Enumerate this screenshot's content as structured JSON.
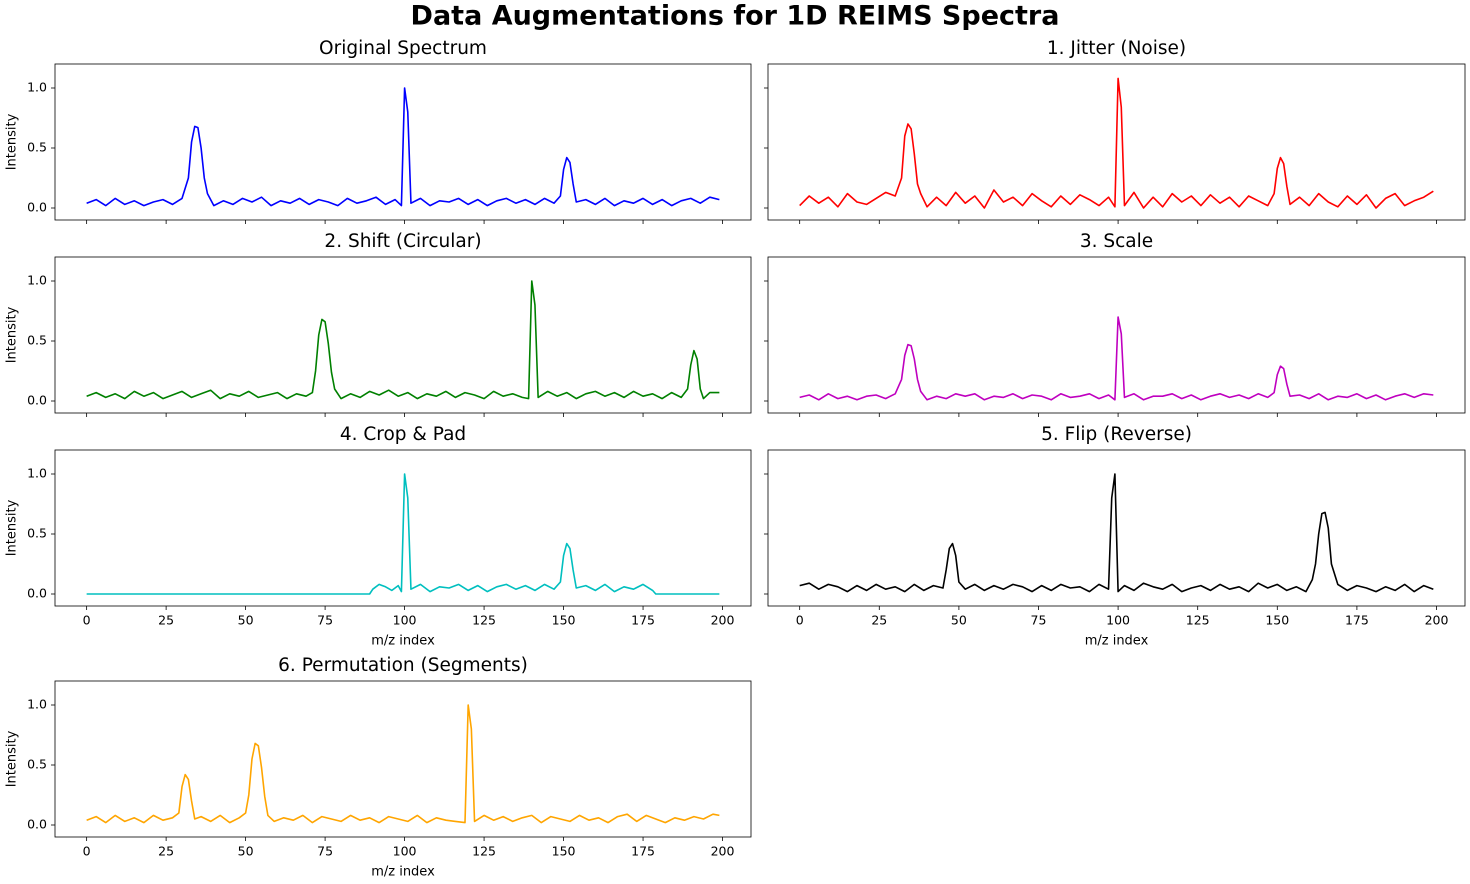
{
  "title": "Data Augmentations for 1D REIMS Spectra",
  "chart_data": [
    {
      "type": "line",
      "title": "Original Spectrum",
      "ylabel": "Intensity",
      "color": "#0000ff",
      "x": [
        0,
        3,
        6,
        9,
        12,
        15,
        18,
        21,
        24,
        27,
        30,
        32,
        33,
        34,
        35,
        36,
        37,
        38,
        40,
        43,
        46,
        49,
        52,
        55,
        58,
        61,
        64,
        67,
        70,
        73,
        76,
        79,
        82,
        85,
        88,
        91,
        94,
        97,
        99,
        100,
        101,
        102,
        105,
        108,
        111,
        114,
        117,
        120,
        123,
        126,
        129,
        132,
        135,
        138,
        141,
        144,
        147,
        149,
        150,
        151,
        152,
        153,
        154,
        157,
        160,
        163,
        166,
        169,
        172,
        175,
        178,
        181,
        184,
        187,
        190,
        193,
        196,
        199
      ],
      "values": [
        0.04,
        0.07,
        0.02,
        0.08,
        0.03,
        0.06,
        0.02,
        0.05,
        0.07,
        0.03,
        0.08,
        0.25,
        0.55,
        0.68,
        0.67,
        0.5,
        0.25,
        0.12,
        0.02,
        0.06,
        0.03,
        0.08,
        0.05,
        0.09,
        0.02,
        0.06,
        0.04,
        0.08,
        0.03,
        0.07,
        0.05,
        0.02,
        0.08,
        0.04,
        0.06,
        0.09,
        0.03,
        0.07,
        0.02,
        1.0,
        0.8,
        0.04,
        0.08,
        0.02,
        0.06,
        0.05,
        0.08,
        0.03,
        0.07,
        0.02,
        0.06,
        0.08,
        0.04,
        0.07,
        0.03,
        0.08,
        0.04,
        0.1,
        0.32,
        0.42,
        0.38,
        0.2,
        0.05,
        0.07,
        0.03,
        0.08,
        0.02,
        0.06,
        0.04,
        0.08,
        0.03,
        0.07,
        0.02,
        0.06,
        0.08,
        0.04,
        0.09,
        0.07
      ],
      "xlim": [
        -9.95,
        208.95
      ],
      "ylim": [
        -0.1,
        1.2
      ],
      "xticks": [
        0,
        25,
        50,
        75,
        100,
        125,
        150,
        175,
        200
      ],
      "yticks": [
        {
          "value": 0,
          "label": "0.0"
        },
        {
          "value": 0.5,
          "label": "0.5"
        },
        {
          "value": 1,
          "label": "1.0"
        }
      ]
    },
    {
      "type": "line",
      "title": "1. Jitter (Noise)",
      "color": "#ff0000",
      "x": [
        0,
        3,
        6,
        9,
        12,
        15,
        18,
        21,
        24,
        27,
        30,
        32,
        33,
        34,
        35,
        36,
        37,
        38,
        40,
        43,
        46,
        49,
        52,
        55,
        58,
        61,
        64,
        67,
        70,
        73,
        76,
        79,
        82,
        85,
        88,
        91,
        94,
        97,
        99,
        100,
        101,
        102,
        105,
        108,
        111,
        114,
        117,
        120,
        123,
        126,
        129,
        132,
        135,
        138,
        141,
        144,
        147,
        149,
        150,
        151,
        152,
        153,
        154,
        157,
        160,
        163,
        166,
        169,
        172,
        175,
        178,
        181,
        184,
        187,
        190,
        193,
        196,
        199
      ],
      "values": [
        0.02,
        0.1,
        0.04,
        0.09,
        0.01,
        0.12,
        0.05,
        0.03,
        0.08,
        0.13,
        0.1,
        0.25,
        0.6,
        0.7,
        0.66,
        0.45,
        0.2,
        0.12,
        0.01,
        0.09,
        0.02,
        0.13,
        0.04,
        0.1,
        0.0,
        0.15,
        0.05,
        0.09,
        0.02,
        0.12,
        0.06,
        0.01,
        0.1,
        0.03,
        0.11,
        0.07,
        0.02,
        0.09,
        0.01,
        1.08,
        0.84,
        0.02,
        0.13,
        0.0,
        0.09,
        0.01,
        0.12,
        0.05,
        0.1,
        0.02,
        0.11,
        0.04,
        0.09,
        0.01,
        0.1,
        0.06,
        0.02,
        0.12,
        0.33,
        0.42,
        0.37,
        0.18,
        0.03,
        0.09,
        0.02,
        0.12,
        0.05,
        0.01,
        0.1,
        0.03,
        0.11,
        0.0,
        0.08,
        0.12,
        0.02,
        0.06,
        0.09,
        0.14
      ],
      "xlim": [
        -9.95,
        208.95
      ],
      "ylim": [
        -0.1,
        1.2
      ],
      "xticks": [
        0,
        25,
        50,
        75,
        100,
        125,
        150,
        175,
        200
      ],
      "yticks": [
        {
          "value": 0,
          "label": "0.0"
        },
        {
          "value": 0.5,
          "label": "0.5"
        },
        {
          "value": 1,
          "label": "1.0"
        }
      ]
    },
    {
      "type": "line",
      "title": "2. Shift (Circular)",
      "ylabel": "Intensity",
      "color": "#008000",
      "x": [
        0,
        3,
        6,
        9,
        12,
        15,
        18,
        21,
        24,
        27,
        30,
        33,
        36,
        39,
        42,
        45,
        48,
        51,
        54,
        57,
        60,
        63,
        66,
        69,
        71,
        72,
        73,
        74,
        75,
        76,
        77,
        78,
        80,
        83,
        86,
        89,
        92,
        95,
        98,
        101,
        104,
        107,
        110,
        113,
        116,
        119,
        122,
        125,
        128,
        131,
        134,
        137,
        139,
        140,
        141,
        142,
        145,
        148,
        151,
        154,
        157,
        160,
        163,
        166,
        169,
        172,
        175,
        178,
        181,
        184,
        187,
        189,
        190,
        191,
        192,
        193,
        194,
        196,
        199
      ],
      "values": [
        0.04,
        0.07,
        0.03,
        0.06,
        0.02,
        0.08,
        0.04,
        0.07,
        0.02,
        0.05,
        0.08,
        0.03,
        0.06,
        0.09,
        0.02,
        0.06,
        0.04,
        0.08,
        0.03,
        0.05,
        0.07,
        0.02,
        0.06,
        0.04,
        0.07,
        0.25,
        0.55,
        0.68,
        0.66,
        0.48,
        0.24,
        0.1,
        0.02,
        0.06,
        0.03,
        0.08,
        0.05,
        0.09,
        0.04,
        0.07,
        0.02,
        0.06,
        0.04,
        0.08,
        0.03,
        0.07,
        0.05,
        0.02,
        0.08,
        0.04,
        0.06,
        0.03,
        0.02,
        1.0,
        0.8,
        0.03,
        0.08,
        0.04,
        0.07,
        0.02,
        0.06,
        0.08,
        0.04,
        0.07,
        0.03,
        0.08,
        0.04,
        0.06,
        0.02,
        0.07,
        0.03,
        0.1,
        0.3,
        0.42,
        0.35,
        0.1,
        0.02,
        0.07,
        0.07
      ],
      "xlim": [
        -9.95,
        208.95
      ],
      "ylim": [
        -0.1,
        1.2
      ],
      "xticks": [
        0,
        25,
        50,
        75,
        100,
        125,
        150,
        175,
        200
      ],
      "yticks": [
        {
          "value": 0,
          "label": "0.0"
        },
        {
          "value": 0.5,
          "label": "0.5"
        },
        {
          "value": 1,
          "label": "1.0"
        }
      ]
    },
    {
      "type": "line",
      "title": "3. Scale",
      "color": "#bf00bf",
      "x": [
        0,
        3,
        6,
        9,
        12,
        15,
        18,
        21,
        24,
        27,
        30,
        32,
        33,
        34,
        35,
        36,
        37,
        38,
        40,
        43,
        46,
        49,
        52,
        55,
        58,
        61,
        64,
        67,
        70,
        73,
        76,
        79,
        82,
        85,
        88,
        91,
        94,
        97,
        99,
        100,
        101,
        102,
        105,
        108,
        111,
        114,
        117,
        120,
        123,
        126,
        129,
        132,
        135,
        138,
        141,
        144,
        147,
        149,
        150,
        151,
        152,
        153,
        154,
        157,
        160,
        163,
        166,
        169,
        172,
        175,
        178,
        181,
        184,
        187,
        190,
        193,
        196,
        199
      ],
      "values": [
        0.03,
        0.05,
        0.01,
        0.06,
        0.02,
        0.04,
        0.01,
        0.04,
        0.05,
        0.02,
        0.06,
        0.18,
        0.38,
        0.47,
        0.46,
        0.35,
        0.18,
        0.08,
        0.01,
        0.04,
        0.02,
        0.06,
        0.04,
        0.06,
        0.01,
        0.04,
        0.03,
        0.06,
        0.02,
        0.05,
        0.04,
        0.01,
        0.06,
        0.03,
        0.04,
        0.06,
        0.02,
        0.05,
        0.01,
        0.7,
        0.56,
        0.03,
        0.06,
        0.01,
        0.04,
        0.04,
        0.06,
        0.02,
        0.05,
        0.01,
        0.04,
        0.06,
        0.03,
        0.05,
        0.02,
        0.06,
        0.03,
        0.07,
        0.22,
        0.29,
        0.27,
        0.14,
        0.04,
        0.05,
        0.02,
        0.06,
        0.01,
        0.04,
        0.03,
        0.06,
        0.02,
        0.05,
        0.01,
        0.04,
        0.06,
        0.03,
        0.06,
        0.05
      ],
      "xlim": [
        -9.95,
        208.95
      ],
      "ylim": [
        -0.1,
        1.2
      ],
      "xticks": [
        0,
        25,
        50,
        75,
        100,
        125,
        150,
        175,
        200
      ],
      "yticks": [
        {
          "value": 0,
          "label": "0.0"
        },
        {
          "value": 0.5,
          "label": "0.5"
        },
        {
          "value": 1,
          "label": "1.0"
        }
      ]
    },
    {
      "type": "line",
      "title": "4. Crop & Pad",
      "ylabel": "Intensity",
      "xlabel": "m/z index",
      "color": "#00bfbf",
      "x": [
        0,
        89,
        90,
        92,
        94,
        96,
        98,
        99,
        100,
        101,
        102,
        105,
        108,
        111,
        114,
        117,
        120,
        123,
        126,
        129,
        132,
        135,
        138,
        141,
        144,
        147,
        149,
        150,
        151,
        152,
        153,
        154,
        157,
        160,
        163,
        166,
        169,
        172,
        175,
        178,
        179,
        199
      ],
      "values": [
        0,
        0,
        0.04,
        0.08,
        0.06,
        0.03,
        0.07,
        0.02,
        1.0,
        0.8,
        0.04,
        0.08,
        0.02,
        0.06,
        0.05,
        0.08,
        0.03,
        0.07,
        0.02,
        0.06,
        0.08,
        0.04,
        0.07,
        0.03,
        0.08,
        0.04,
        0.1,
        0.32,
        0.42,
        0.38,
        0.2,
        0.05,
        0.07,
        0.03,
        0.08,
        0.02,
        0.06,
        0.04,
        0.08,
        0.03,
        0,
        0
      ],
      "xlim": [
        -9.95,
        208.95
      ],
      "ylim": [
        -0.1,
        1.2
      ],
      "xticks": [
        0,
        25,
        50,
        75,
        100,
        125,
        150,
        175,
        200
      ],
      "yticks": [
        {
          "value": 0,
          "label": "0.0"
        },
        {
          "value": 0.5,
          "label": "0.5"
        },
        {
          "value": 1,
          "label": "1.0"
        }
      ]
    },
    {
      "type": "line",
      "title": "5. Flip (Reverse)",
      "xlabel": "m/z index",
      "color": "#000000",
      "x": [
        0,
        3,
        6,
        9,
        12,
        15,
        18,
        21,
        24,
        27,
        30,
        33,
        36,
        39,
        42,
        45,
        46,
        47,
        48,
        49,
        50,
        52,
        55,
        58,
        61,
        64,
        67,
        70,
        73,
        76,
        79,
        82,
        85,
        88,
        91,
        94,
        97,
        98,
        99,
        100,
        102,
        105,
        108,
        111,
        114,
        117,
        120,
        123,
        126,
        129,
        132,
        135,
        138,
        141,
        144,
        147,
        150,
        153,
        156,
        159,
        161,
        162,
        163,
        164,
        165,
        166,
        167,
        169,
        172,
        175,
        178,
        181,
        184,
        187,
        190,
        193,
        196,
        199
      ],
      "values": [
        0.07,
        0.09,
        0.04,
        0.08,
        0.06,
        0.02,
        0.07,
        0.03,
        0.08,
        0.04,
        0.06,
        0.02,
        0.08,
        0.03,
        0.07,
        0.05,
        0.2,
        0.38,
        0.42,
        0.32,
        0.1,
        0.04,
        0.08,
        0.03,
        0.07,
        0.04,
        0.08,
        0.06,
        0.02,
        0.07,
        0.03,
        0.08,
        0.05,
        0.06,
        0.02,
        0.08,
        0.04,
        0.8,
        1.0,
        0.02,
        0.07,
        0.03,
        0.09,
        0.06,
        0.04,
        0.08,
        0.02,
        0.05,
        0.07,
        0.03,
        0.08,
        0.04,
        0.06,
        0.02,
        0.09,
        0.05,
        0.08,
        0.03,
        0.06,
        0.02,
        0.12,
        0.25,
        0.5,
        0.67,
        0.68,
        0.55,
        0.25,
        0.08,
        0.03,
        0.07,
        0.05,
        0.02,
        0.06,
        0.03,
        0.08,
        0.02,
        0.07,
        0.04
      ],
      "xlim": [
        -9.95,
        208.95
      ],
      "ylim": [
        -0.1,
        1.2
      ],
      "xticks": [
        0,
        25,
        50,
        75,
        100,
        125,
        150,
        175,
        200
      ],
      "yticks": [
        {
          "value": 0,
          "label": "0.0"
        },
        {
          "value": 0.5,
          "label": "0.5"
        },
        {
          "value": 1,
          "label": "1.0"
        }
      ]
    },
    {
      "type": "line",
      "title": "6. Permutation (Segments)",
      "ylabel": "Intensity",
      "xlabel": "m/z index",
      "color": "#ffa500",
      "x": [
        0,
        3,
        6,
        9,
        12,
        15,
        18,
        21,
        24,
        27,
        29,
        30,
        31,
        32,
        33,
        34,
        36,
        39,
        42,
        45,
        48,
        50,
        51,
        52,
        53,
        54,
        55,
        56,
        57,
        59,
        62,
        65,
        68,
        71,
        74,
        77,
        80,
        83,
        86,
        89,
        92,
        95,
        98,
        101,
        104,
        107,
        110,
        113,
        116,
        119,
        120,
        121,
        122,
        125,
        128,
        131,
        134,
        137,
        140,
        143,
        146,
        149,
        152,
        155,
        158,
        161,
        164,
        167,
        170,
        173,
        176,
        179,
        182,
        185,
        188,
        191,
        194,
        197,
        199
      ],
      "values": [
        0.04,
        0.07,
        0.02,
        0.08,
        0.03,
        0.06,
        0.02,
        0.08,
        0.04,
        0.06,
        0.1,
        0.32,
        0.42,
        0.38,
        0.2,
        0.05,
        0.07,
        0.03,
        0.08,
        0.02,
        0.06,
        0.1,
        0.25,
        0.55,
        0.68,
        0.66,
        0.48,
        0.24,
        0.08,
        0.03,
        0.06,
        0.04,
        0.08,
        0.02,
        0.07,
        0.05,
        0.03,
        0.08,
        0.04,
        0.06,
        0.02,
        0.07,
        0.05,
        0.03,
        0.08,
        0.02,
        0.06,
        0.04,
        0.03,
        0.02,
        1.0,
        0.8,
        0.03,
        0.08,
        0.04,
        0.07,
        0.03,
        0.06,
        0.08,
        0.02,
        0.07,
        0.05,
        0.03,
        0.08,
        0.04,
        0.06,
        0.02,
        0.07,
        0.09,
        0.03,
        0.08,
        0.05,
        0.02,
        0.06,
        0.04,
        0.07,
        0.05,
        0.09,
        0.08
      ],
      "xlim": [
        -9.95,
        208.95
      ],
      "ylim": [
        -0.1,
        1.2
      ],
      "xticks": [
        0,
        25,
        50,
        75,
        100,
        125,
        150,
        175,
        200
      ],
      "yticks": [
        {
          "value": 0,
          "label": "0.0"
        },
        {
          "value": 0.5,
          "label": "0.5"
        },
        {
          "value": 1,
          "label": "1.0"
        }
      ]
    }
  ]
}
